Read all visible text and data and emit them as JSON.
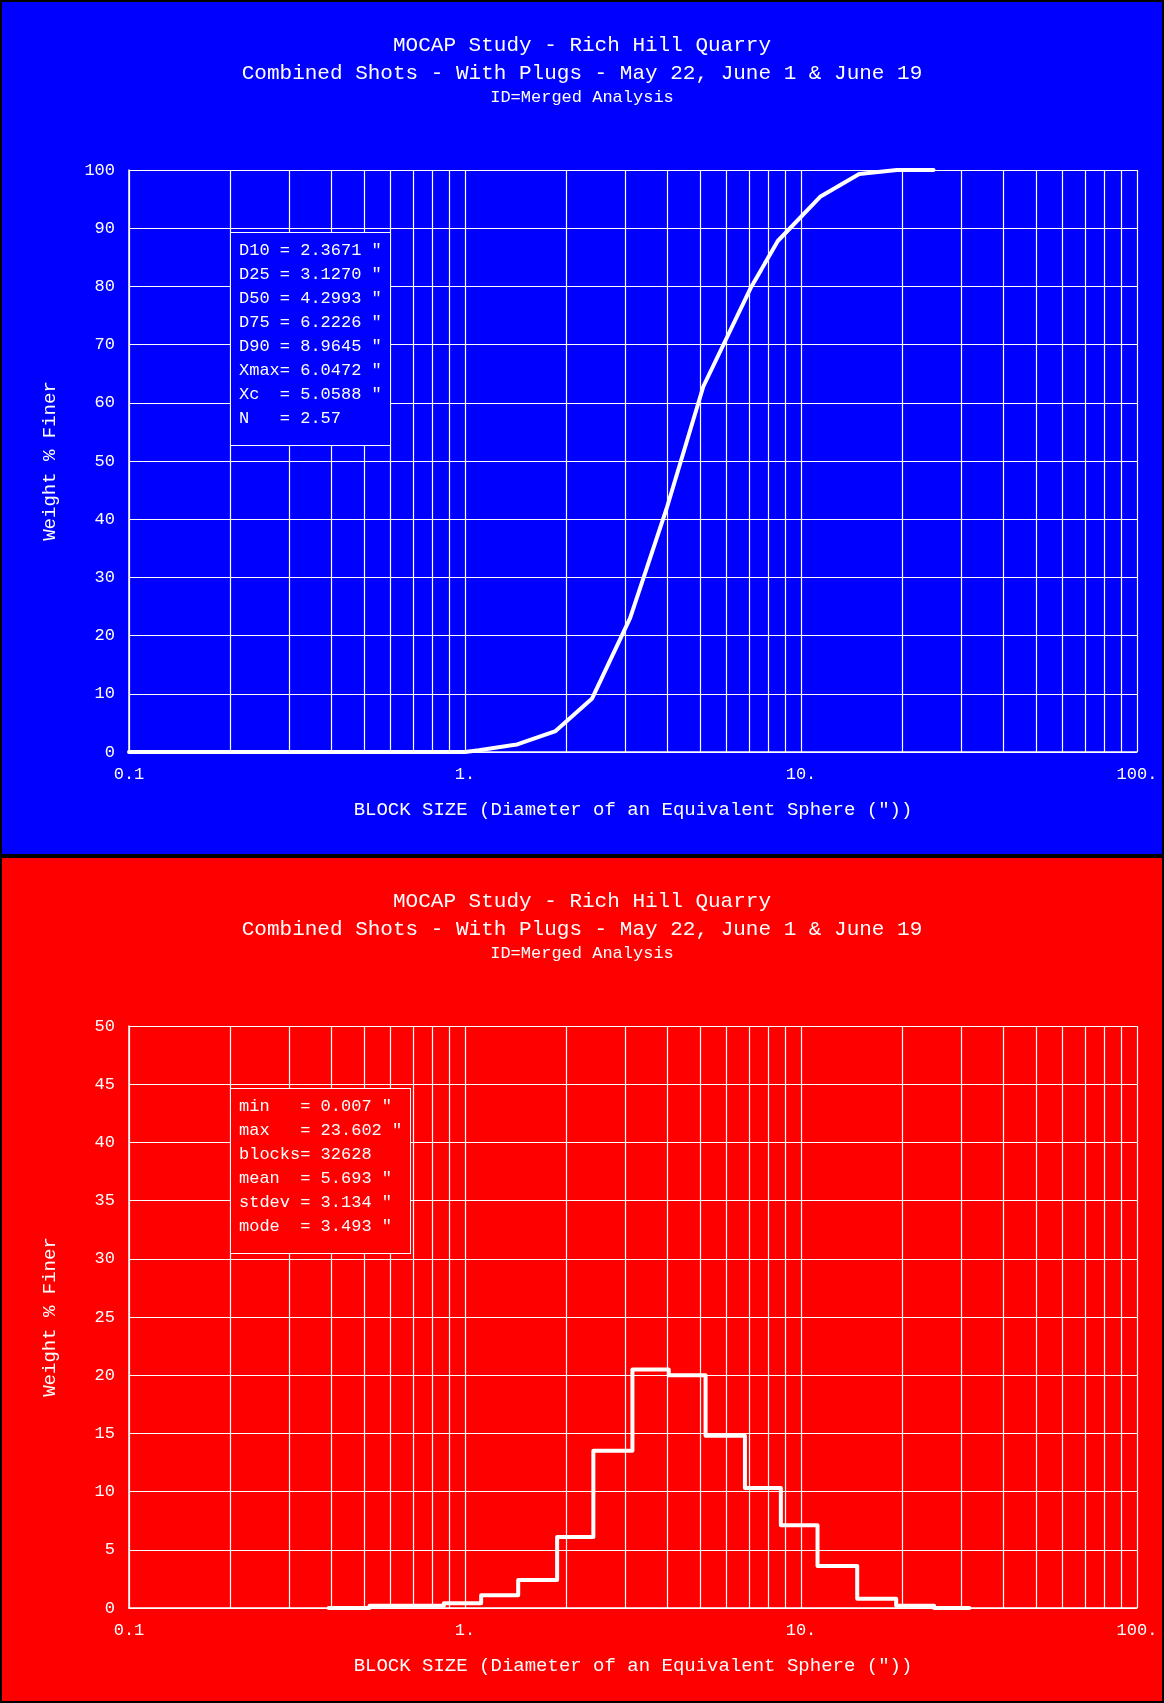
{
  "chart_data": [
    {
      "type": "line",
      "title": "MOCAP Study - Rich Hill Quarry",
      "subtitle": "Combined Shots - With Plugs - May 22, June 1 & June 19\nID=Merged Analysis",
      "xlabel": "BLOCK SIZE (Diameter of an Equivalent Sphere (\"))",
      "ylabel": "Weight % Finer",
      "x": [
        0.1,
        1.0,
        1.1,
        1.43,
        1.86,
        2.39,
        3.1,
        3.98,
        5.12,
        7.11,
        8.53,
        11.4,
        14.9,
        19.3,
        24.8
      ],
      "values": [
        0,
        0,
        0.3,
        1.3,
        3.6,
        9.2,
        23,
        41.8,
        62.8,
        79.9,
        87.8,
        95.4,
        99.3,
        100,
        100
      ],
      "color": "#ffffff",
      "log": "x",
      "grid": true,
      "marker": "none",
      "line_style": "solid",
      "xlim": [
        0.1,
        100
      ],
      "xticks": [
        {
          "value": 0.1,
          "label": "0.1"
        },
        {
          "value": 0.2,
          "label": null
        },
        {
          "value": 0.3,
          "label": null
        },
        {
          "value": 0.4,
          "label": null
        },
        {
          "value": 0.5,
          "label": null
        },
        {
          "value": 0.6,
          "label": null
        },
        {
          "value": 0.7,
          "label": null
        },
        {
          "value": 0.8,
          "label": null
        },
        {
          "value": 0.9,
          "label": null
        },
        {
          "value": 1,
          "label": "1."
        },
        {
          "value": 2,
          "label": null
        },
        {
          "value": 3,
          "label": null
        },
        {
          "value": 4,
          "label": null
        },
        {
          "value": 5,
          "label": null
        },
        {
          "value": 6,
          "label": null
        },
        {
          "value": 7,
          "label": null
        },
        {
          "value": 8,
          "label": null
        },
        {
          "value": 9,
          "label": null
        },
        {
          "value": 10,
          "label": "10."
        },
        {
          "value": 20,
          "label": null
        },
        {
          "value": 30,
          "label": null
        },
        {
          "value": 40,
          "label": null
        },
        {
          "value": 50,
          "label": null
        },
        {
          "value": 60,
          "label": null
        },
        {
          "value": 70,
          "label": null
        },
        {
          "value": 80,
          "label": null
        },
        {
          "value": 90,
          "label": null
        },
        {
          "value": 100,
          "label": "100."
        }
      ],
      "ylim": [
        0,
        100
      ],
      "yticks": [
        0,
        10,
        20,
        30,
        40,
        50,
        60,
        70,
        80,
        90,
        100
      ],
      "annotations": [
        "D10 = 2.3671 \"",
        "D25 = 3.1270 \"",
        "D50 = 4.2993 \"",
        "D75 = 6.2226 \"",
        "D90 = 8.9645 \"",
        "Xmax= 6.0472 \"",
        "Xc  = 5.0588 \"",
        "N   = 2.57"
      ]
    },
    {
      "type": "step",
      "title": "MOCAP Study - Rich Hill Quarry",
      "subtitle": "Combined Shots - With Plugs - May 22, June 1 & June 19\nID=Merged Analysis",
      "xlabel": "BLOCK SIZE (Diameter of an Equivalent Sphere (\"))",
      "ylabel": "Weight % Finer",
      "x": [
        0.393,
        0.52,
        0.671,
        0.865,
        1.117,
        1.44,
        1.88,
        2.41,
        3.15,
        4.04,
        5.2,
        6.81,
        8.71,
        11.2,
        14.7,
        19.2,
        24.9,
        31.7
      ],
      "values": [
        0,
        0.2,
        0.2,
        0.4,
        1.1,
        2.4,
        6.1,
        13.5,
        20.5,
        20.0,
        14.8,
        10.3,
        7.1,
        3.6,
        0.8,
        0.2,
        0,
        0
      ],
      "color": "#ffffff",
      "log": "x",
      "grid": true,
      "marker": "none",
      "line_style": "solid",
      "xlim": [
        0.1,
        100
      ],
      "xticks": [
        {
          "value": 0.1,
          "label": "0.1"
        },
        {
          "value": 0.2,
          "label": null
        },
        {
          "value": 0.3,
          "label": null
        },
        {
          "value": 0.4,
          "label": null
        },
        {
          "value": 0.5,
          "label": null
        },
        {
          "value": 0.6,
          "label": null
        },
        {
          "value": 0.7,
          "label": null
        },
        {
          "value": 0.8,
          "label": null
        },
        {
          "value": 0.9,
          "label": null
        },
        {
          "value": 1,
          "label": "1."
        },
        {
          "value": 2,
          "label": null
        },
        {
          "value": 3,
          "label": null
        },
        {
          "value": 4,
          "label": null
        },
        {
          "value": 5,
          "label": null
        },
        {
          "value": 6,
          "label": null
        },
        {
          "value": 7,
          "label": null
        },
        {
          "value": 8,
          "label": null
        },
        {
          "value": 9,
          "label": null
        },
        {
          "value": 10,
          "label": "10."
        },
        {
          "value": 20,
          "label": null
        },
        {
          "value": 30,
          "label": null
        },
        {
          "value": 40,
          "label": null
        },
        {
          "value": 50,
          "label": null
        },
        {
          "value": 60,
          "label": null
        },
        {
          "value": 70,
          "label": null
        },
        {
          "value": 80,
          "label": null
        },
        {
          "value": 90,
          "label": null
        },
        {
          "value": 100,
          "label": "100."
        }
      ],
      "ylim": [
        0,
        50
      ],
      "yticks": [
        0,
        5,
        10,
        15,
        20,
        25,
        30,
        35,
        40,
        45,
        50
      ],
      "annotations": [
        "min   = 0.007 \"",
        "max   = 23.602 \"",
        "blocks= 32628",
        "mean  = 5.693 \"",
        "stdev = 3.134 \"",
        "mode  = 3.493 \""
      ]
    }
  ]
}
